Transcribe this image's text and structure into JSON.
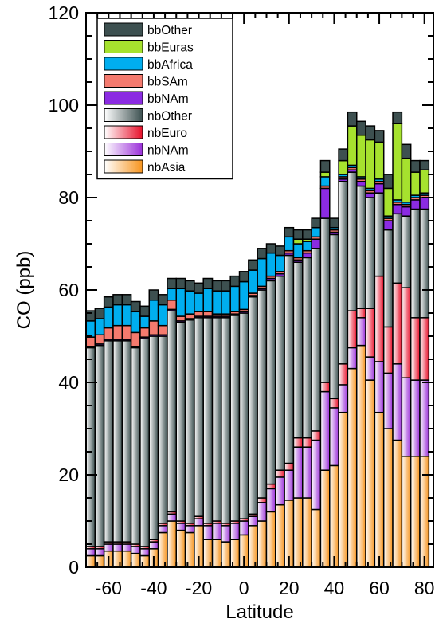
{
  "chart_data": {
    "type": "bar",
    "stacked": true,
    "title": "",
    "xlabel": "Latitude",
    "ylabel": "CO (ppb)",
    "xlim": [
      -70,
      84
    ],
    "ylim": [
      0,
      120
    ],
    "x_ticks": [
      -60,
      -40,
      -20,
      0,
      20,
      40,
      60,
      80
    ],
    "y_ticks": [
      0,
      20,
      40,
      60,
      80,
      100,
      120
    ],
    "bin_width": 4,
    "grid": false,
    "legend_position": "top-left",
    "x": [
      -68,
      -64,
      -60,
      -56,
      -52,
      -48,
      -44,
      -40,
      -36,
      -32,
      -28,
      -24,
      -20,
      -16,
      -12,
      -8,
      -4,
      0,
      4,
      8,
      12,
      16,
      20,
      24,
      28,
      32,
      36,
      40,
      44,
      48,
      52,
      56,
      60,
      64,
      68,
      72,
      76,
      80
    ],
    "legend": [
      "bbOther",
      "bbEuras",
      "bbAfrica",
      "bbSAm",
      "bbNAm",
      "nbOther",
      "nbEuro",
      "nbNAm",
      "nbAsia"
    ],
    "series": [
      {
        "name": "nbAsia",
        "color": "#f7941d",
        "gradient": true,
        "values": [
          2.5,
          2.5,
          3.5,
          3.5,
          3.5,
          3.0,
          2.5,
          4.0,
          7.5,
          10.0,
          8.0,
          7.5,
          9.0,
          6.0,
          6.0,
          5.5,
          6.0,
          7.0,
          9.0,
          10.0,
          12.0,
          13.5,
          14.5,
          15.0,
          15.0,
          12.5,
          21.0,
          22.0,
          33.5,
          43.0,
          48.0,
          40.5,
          33.5,
          30.0,
          27.5,
          24.0,
          24.0,
          24.0
        ]
      },
      {
        "name": "nbNAm",
        "color": "#9b30d9",
        "gradient": true,
        "values": [
          1.5,
          1.5,
          1.5,
          1.5,
          1.5,
          1.5,
          1.5,
          1.5,
          1.5,
          1.5,
          1.5,
          1.5,
          1.5,
          3.0,
          3.5,
          3.5,
          3.5,
          3.0,
          2.0,
          4.0,
          5.0,
          6.0,
          6.5,
          11.0,
          11.0,
          15.0,
          17.0,
          12.5,
          6.0,
          4.5,
          6.0,
          5.0,
          11.0,
          12.0,
          16.5,
          17.0,
          16.5,
          16.5
        ]
      },
      {
        "name": "nbEuro",
        "color": "#e8102a",
        "gradient": true,
        "values": [
          0.5,
          0.5,
          0.5,
          0.5,
          0.5,
          0.5,
          0.5,
          0.5,
          0.5,
          0.5,
          0.5,
          0.5,
          0.5,
          0.5,
          0.5,
          0.5,
          0.5,
          0.5,
          0.5,
          1.0,
          1.0,
          1.5,
          1.5,
          2.0,
          2.0,
          2.0,
          2.0,
          2.0,
          4.5,
          8.0,
          2.0,
          10.5,
          18.5,
          10.0,
          17.5,
          19.5,
          13.5,
          13.5
        ]
      },
      {
        "name": "nbOther",
        "color": "#3c5050",
        "gradient": true,
        "values": [
          43.0,
          43.5,
          43.5,
          43.5,
          43.5,
          42.5,
          45.0,
          44.0,
          40.5,
          43.5,
          43.0,
          44.0,
          43.0,
          44.5,
          44.0,
          44.5,
          44.5,
          44.5,
          47.0,
          45.0,
          44.0,
          42.0,
          45.0,
          38.0,
          39.0,
          39.5,
          35.5,
          35.5,
          39.5,
          30.0,
          26.5,
          24.0,
          18.0,
          21.0,
          15.0,
          15.5,
          23.5,
          23.5
        ]
      },
      {
        "name": "bbNAm",
        "color": "#8b2be2",
        "values": [
          0.3,
          0.3,
          0.3,
          0.3,
          0.3,
          0.3,
          0.3,
          0.3,
          0.3,
          0.3,
          0.3,
          0.3,
          0.3,
          0.3,
          0.3,
          0.3,
          0.3,
          0.3,
          0.3,
          0.3,
          0.5,
          0.5,
          0.5,
          0.5,
          1.0,
          2.0,
          6.5,
          0.5,
          0.5,
          0.5,
          1.0,
          1.0,
          2.0,
          2.0,
          2.0,
          2.0,
          2.0,
          2.5
        ]
      },
      {
        "name": "bbSAm",
        "color": "#f47a6e",
        "values": [
          2.0,
          2.0,
          2.5,
          3.0,
          3.0,
          3.0,
          2.0,
          3.0,
          2.0,
          2.0,
          1.0,
          1.0,
          1.0,
          1.0,
          0.5,
          0.5,
          0.5,
          0.5,
          0.5,
          0.5,
          0.5,
          0.5,
          0.5,
          0.5,
          0.5,
          0.5,
          0.5,
          0.5,
          0.5,
          0.5,
          0.5,
          0.5,
          0.5,
          0.5,
          0.5,
          0.5,
          0.5,
          0.5
        ]
      },
      {
        "name": "bbAfrica",
        "color": "#00aeef",
        "values": [
          3.5,
          3.5,
          4.5,
          4.5,
          4.5,
          4.5,
          2.5,
          4.5,
          4.5,
          2.5,
          6.0,
          5.0,
          4.0,
          5.0,
          5.0,
          5.0,
          5.5,
          6.0,
          5.0,
          6.0,
          5.0,
          3.5,
          3.0,
          3.0,
          2.0,
          2.0,
          2.0,
          0.5,
          0.5,
          0.5,
          0.5,
          0.5,
          0.5,
          0.5,
          0.5,
          0.5,
          0.5,
          0.5
        ]
      },
      {
        "name": "bbEuras",
        "color": "#a6e22e",
        "values": [
          0,
          0,
          0,
          0,
          0,
          0,
          0,
          0,
          0,
          0,
          0,
          0,
          0,
          0,
          0,
          0,
          0,
          0,
          0,
          0,
          0,
          0,
          0,
          1.0,
          0.5,
          0,
          1.0,
          0,
          3.0,
          8.5,
          9.0,
          10.5,
          8.0,
          6.0,
          16.5,
          9.5,
          5.0,
          5.0
        ]
      },
      {
        "name": "bbOther",
        "color": "#3d5050",
        "values": [
          2.2,
          2.2,
          2.2,
          2.2,
          2.2,
          2.2,
          2.2,
          2.2,
          2.2,
          2.2,
          2.2,
          2.2,
          2.2,
          2.2,
          2.2,
          2.2,
          2.2,
          2.2,
          2.2,
          2.2,
          2.0,
          2.0,
          2.0,
          2.0,
          2.0,
          2.0,
          2.5,
          2.0,
          2.5,
          3.0,
          3.0,
          3.0,
          2.5,
          3.0,
          2.5,
          3.0,
          2.5,
          2.0
        ]
      }
    ]
  }
}
